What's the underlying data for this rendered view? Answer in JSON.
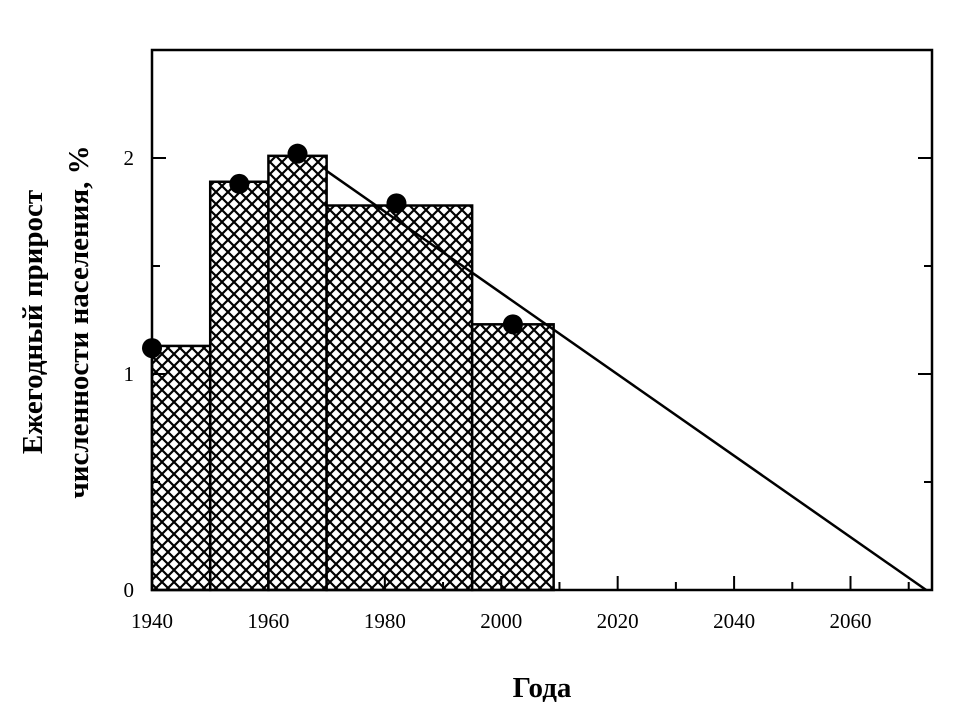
{
  "chart_data": {
    "type": "histogram",
    "xlabel": "Года",
    "ylabel": [
      "Ежегодный прирост",
      "численности населения, %"
    ],
    "bins": [
      1940,
      1950,
      1960,
      1970,
      1995,
      2009
    ],
    "values": [
      1.13,
      1.89,
      2.01,
      1.78,
      1.23
    ],
    "points": {
      "x": [
        1940,
        1955,
        1965,
        1982,
        2002
      ],
      "values": [
        1.12,
        1.88,
        2.02,
        1.79,
        1.23
      ]
    },
    "trend": {
      "x": [
        1970,
        2073
      ],
      "values": [
        1.94,
        0
      ]
    },
    "xlim": [
      1940,
      2074
    ],
    "ylim": [
      0,
      2.5
    ],
    "xticks": [
      1940,
      1960,
      1980,
      2000,
      2020,
      2040,
      2060
    ],
    "xminor": [
      1950,
      1970,
      1990,
      2010,
      2030,
      2050,
      2070
    ],
    "yticks": [
      0,
      1,
      2
    ],
    "yminor": [
      0.5,
      1.5
    ],
    "hatch": "crosshatch",
    "color": "#000000"
  }
}
